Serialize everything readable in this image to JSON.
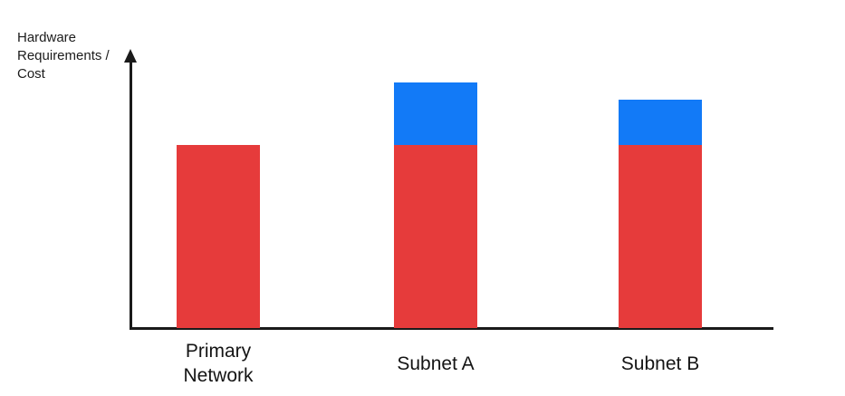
{
  "chart_data": {
    "type": "bar",
    "stacked": true,
    "title": "",
    "ylabel": "Hardware Requirements / Cost",
    "xlabel": "",
    "categories": [
      "Primary Network",
      "Subnet A",
      "Subnet B"
    ],
    "series": [
      {
        "name": "red",
        "color": "#E63B3B",
        "values": [
          66,
          66,
          66
        ]
      },
      {
        "name": "blue",
        "color": "#127AF7",
        "values": [
          0,
          22.5,
          16.3
        ]
      }
    ],
    "ylim": [
      0,
      100
    ],
    "y_axis_ticks": "none",
    "x_axis_ticks": "none",
    "grid": false,
    "legend": false,
    "axis_color": "#1A1A1A",
    "y_axis_arrow": true
  }
}
